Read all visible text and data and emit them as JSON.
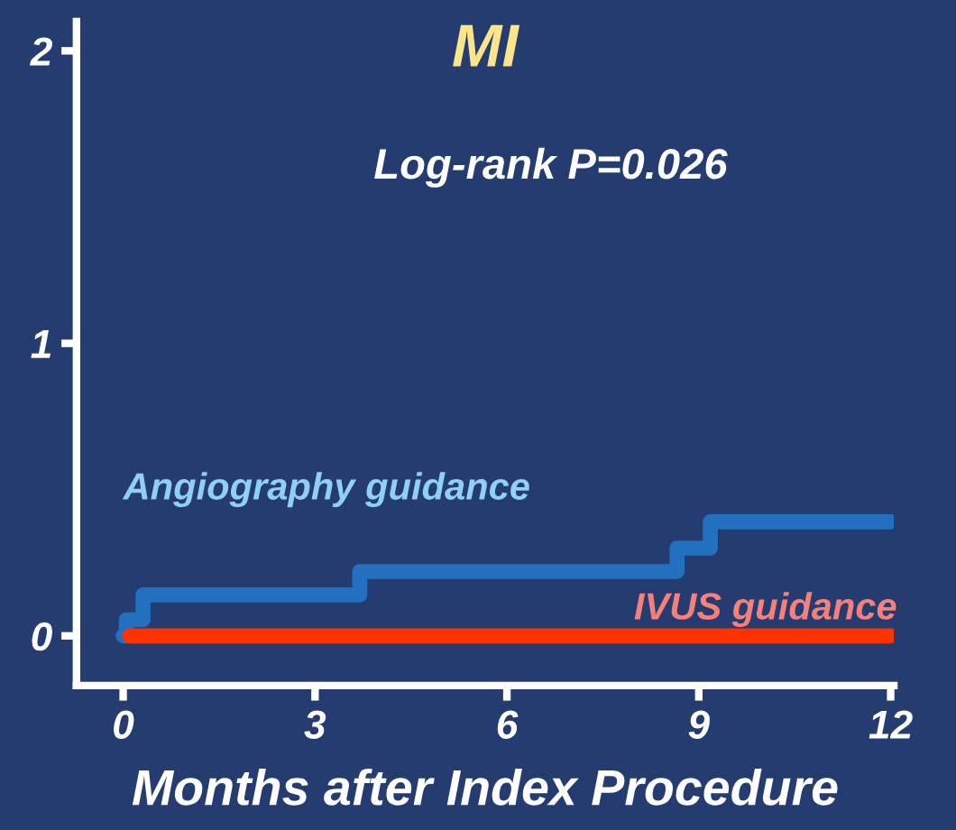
{
  "chart_data": {
    "type": "step",
    "title": "MI",
    "xlabel": "Months after Index Procedure",
    "annotations": [
      "Log-rank P=0.026"
    ],
    "series": [
      {
        "name": "Angiography guidance",
        "color": "#2271c0",
        "x": [
          0,
          0.05,
          0.31,
          3.7,
          8.66,
          9.18,
          12
        ],
        "values": [
          0,
          0.055,
          0.14,
          0.22,
          0.3,
          0.39,
          0.39
        ]
      },
      {
        "name": "IVUS guidance",
        "color": "#ff3300",
        "x": [
          0.1,
          12
        ],
        "values": [
          0,
          0
        ]
      }
    ],
    "xlim": [
      -0.73,
      12.05
    ],
    "xticks": [
      0,
      3,
      6,
      9,
      12
    ],
    "ylim": [
      -0.17,
      2.1
    ],
    "yticks": [
      0,
      1,
      2
    ],
    "grid": false,
    "legend": false
  }
}
